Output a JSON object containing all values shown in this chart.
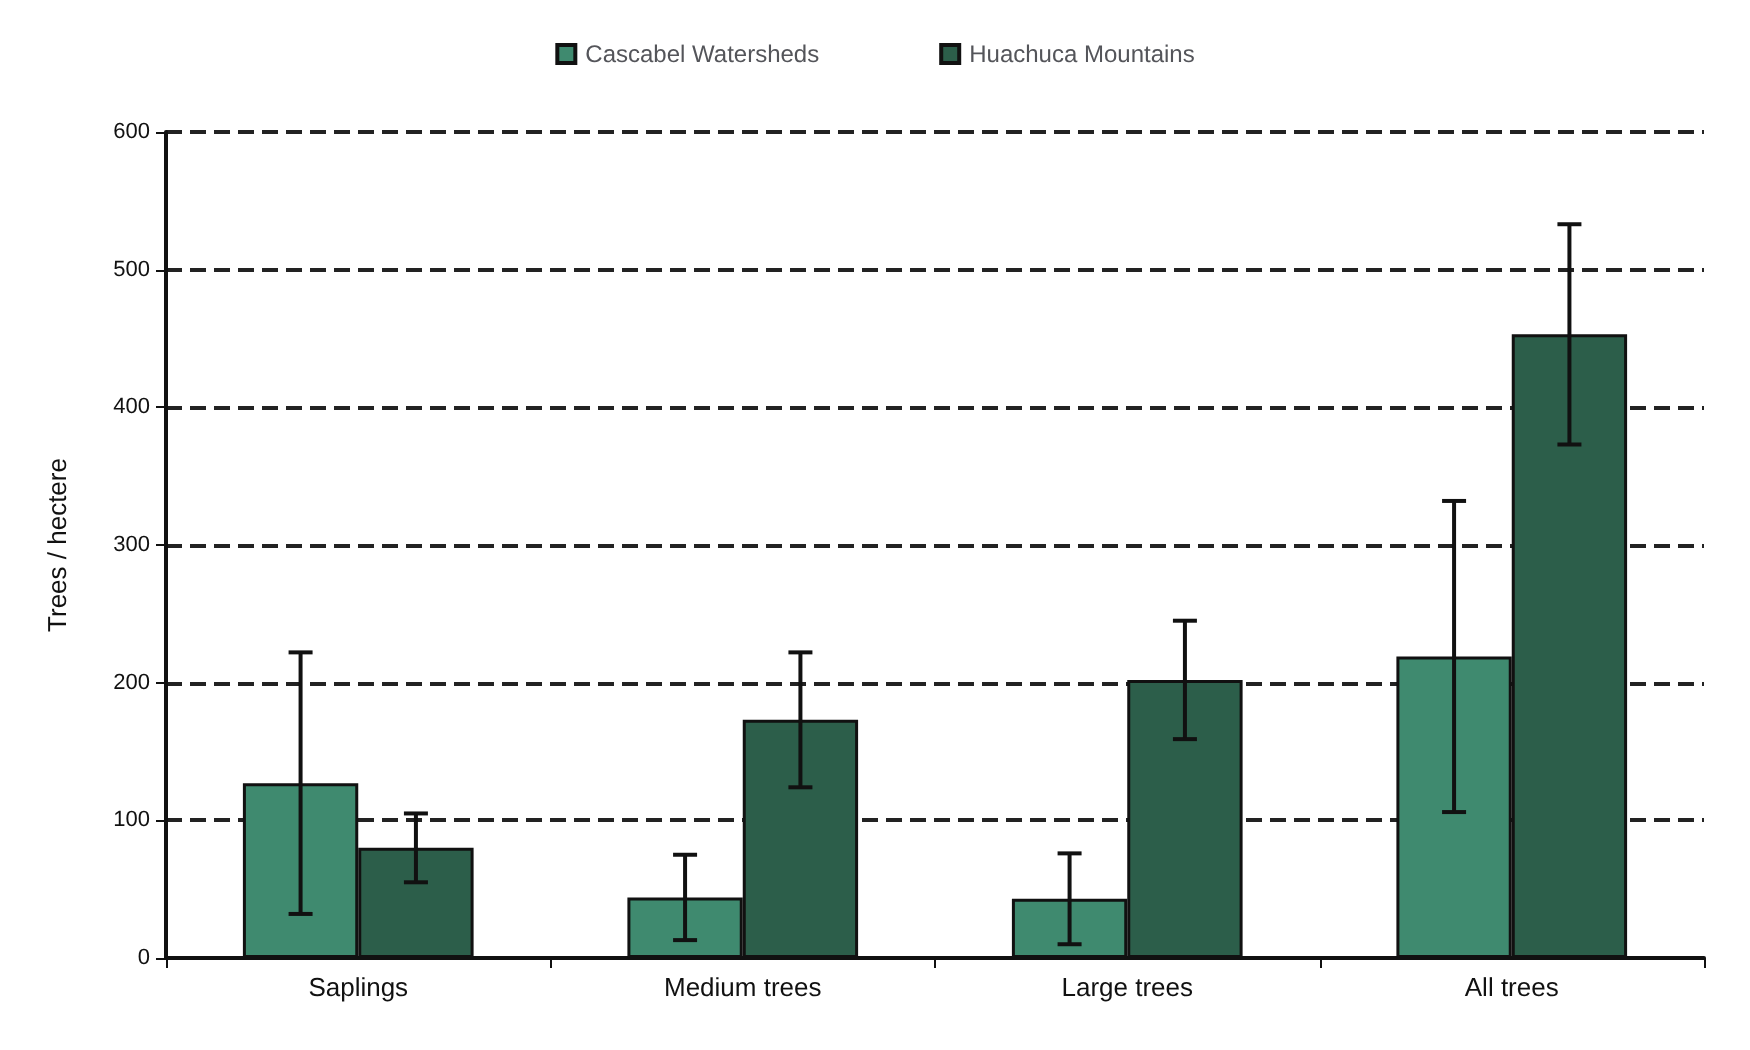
{
  "chart_data": {
    "type": "bar",
    "ylabel": "Trees / hectere",
    "categories": [
      "Saplings",
      "Medium trees",
      "Large trees",
      "All trees"
    ],
    "series": [
      {
        "name": "Cascabel Watersheds",
        "color": "#3f8a6f",
        "values": [
          127,
          44,
          43,
          219
        ],
        "errors": [
          95,
          31,
          33,
          113
        ]
      },
      {
        "name": "Huachuca Mountains",
        "color": "#2c5e4a",
        "values": [
          80,
          173,
          202,
          453
        ],
        "errors": [
          25,
          49,
          43,
          80
        ]
      }
    ],
    "ylim": [
      0,
      600
    ],
    "yticks": [
      0,
      100,
      200,
      300,
      400,
      500,
      600
    ],
    "grid": "y",
    "line_style": "dashed",
    "legend": "top"
  }
}
